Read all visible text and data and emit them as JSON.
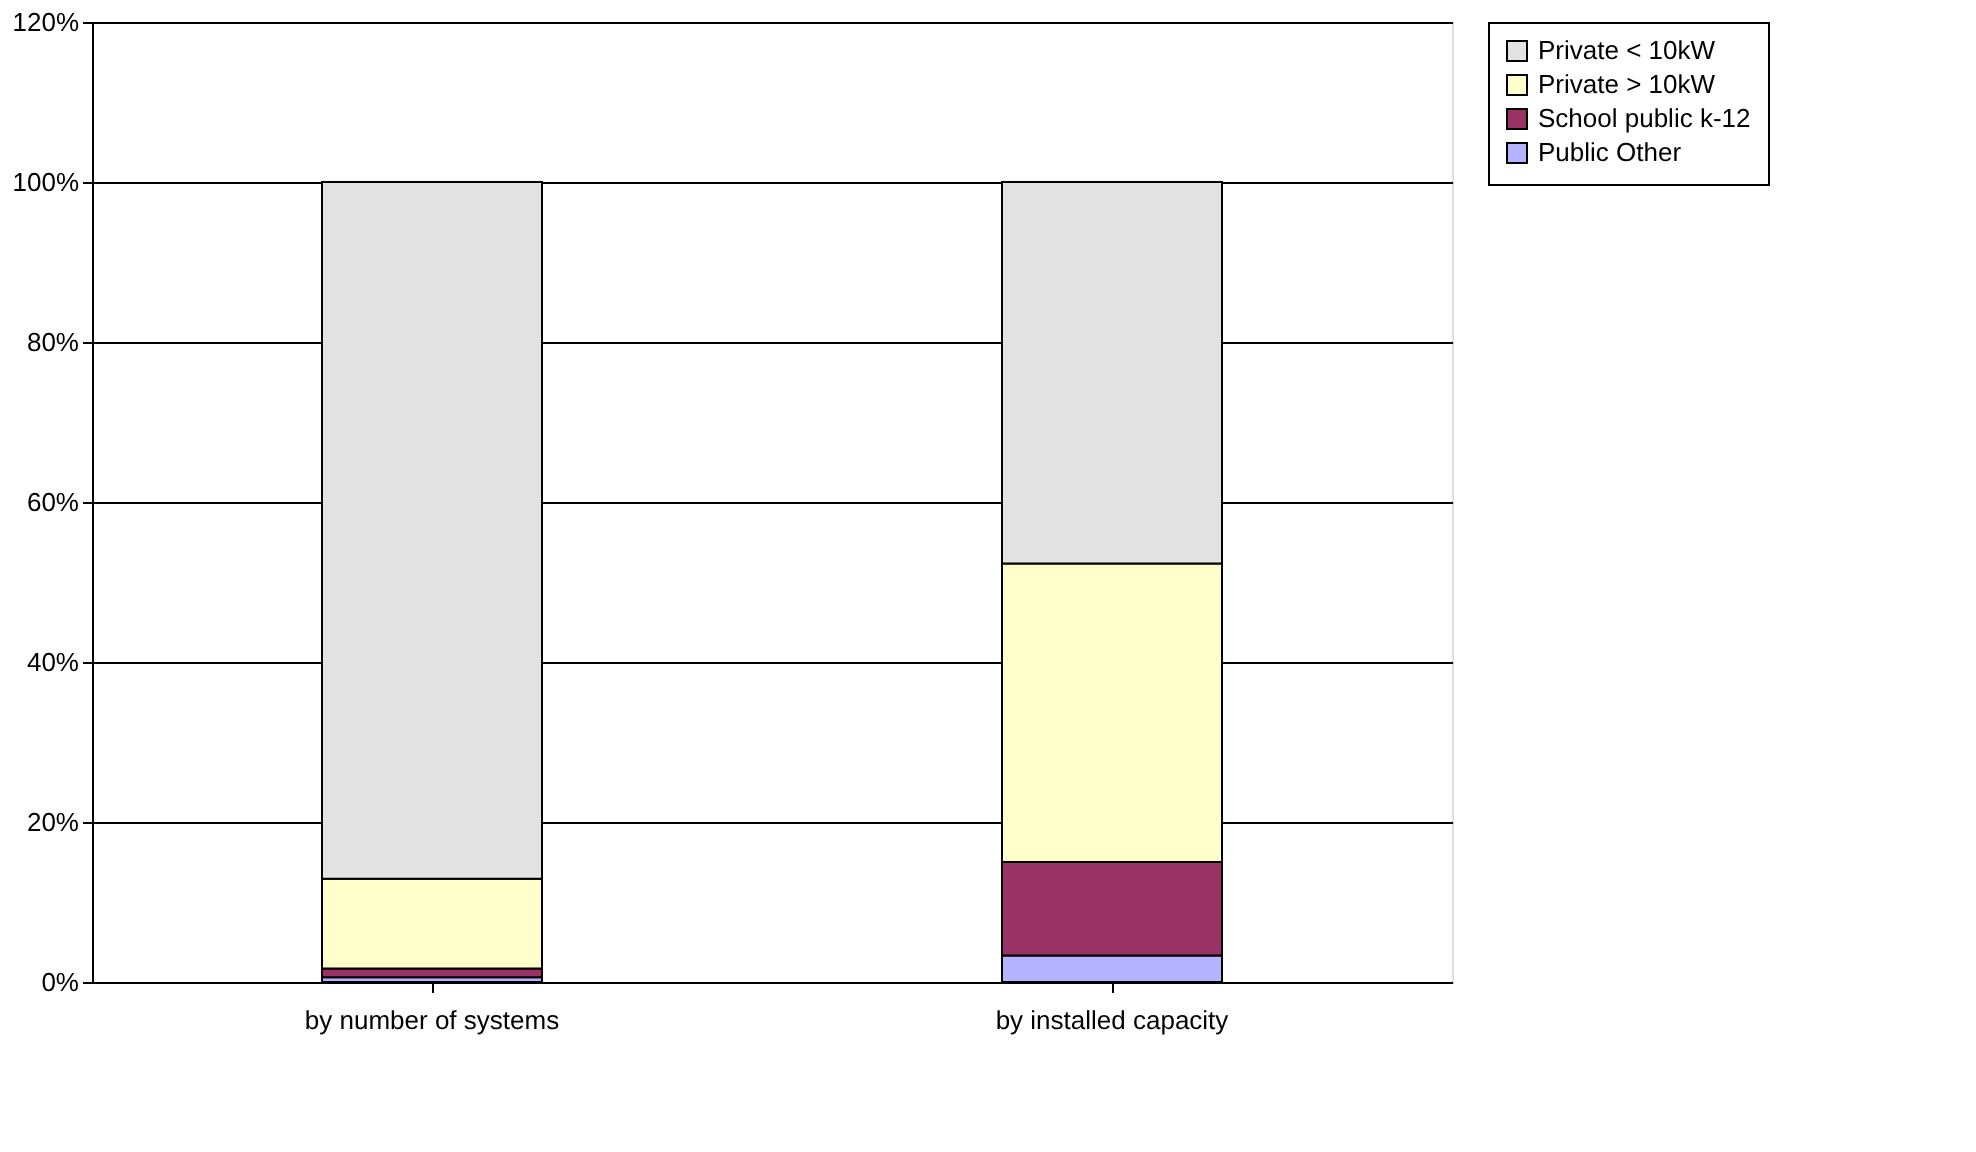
{
  "chart_data": {
    "type": "bar",
    "stacked": true,
    "categories": [
      "by number of systems",
      "by installed capacity"
    ],
    "series": [
      {
        "name": "Public Other",
        "color": "#b3b3ff",
        "values": [
          0.6,
          3.3
        ]
      },
      {
        "name": "School public k-12",
        "color": "#993366",
        "values": [
          1.1,
          11.7
        ]
      },
      {
        "name": "Private > 10kW",
        "color": "#ffffcc",
        "values": [
          11.2,
          37.3
        ]
      },
      {
        "name": "Private < 10kW",
        "color": "#e3e3e3",
        "values": [
          87.1,
          47.7
        ]
      }
    ],
    "ylim": [
      0,
      120
    ],
    "yticks": [
      {
        "value": 0,
        "label": "0%"
      },
      {
        "value": 20,
        "label": "20%"
      },
      {
        "value": 40,
        "label": "40%"
      },
      {
        "value": 60,
        "label": "60%"
      },
      {
        "value": 80,
        "label": "80%"
      },
      {
        "value": 100,
        "label": "100%"
      },
      {
        "value": 120,
        "label": "120%"
      }
    ],
    "grid": "y",
    "legend": "right"
  }
}
